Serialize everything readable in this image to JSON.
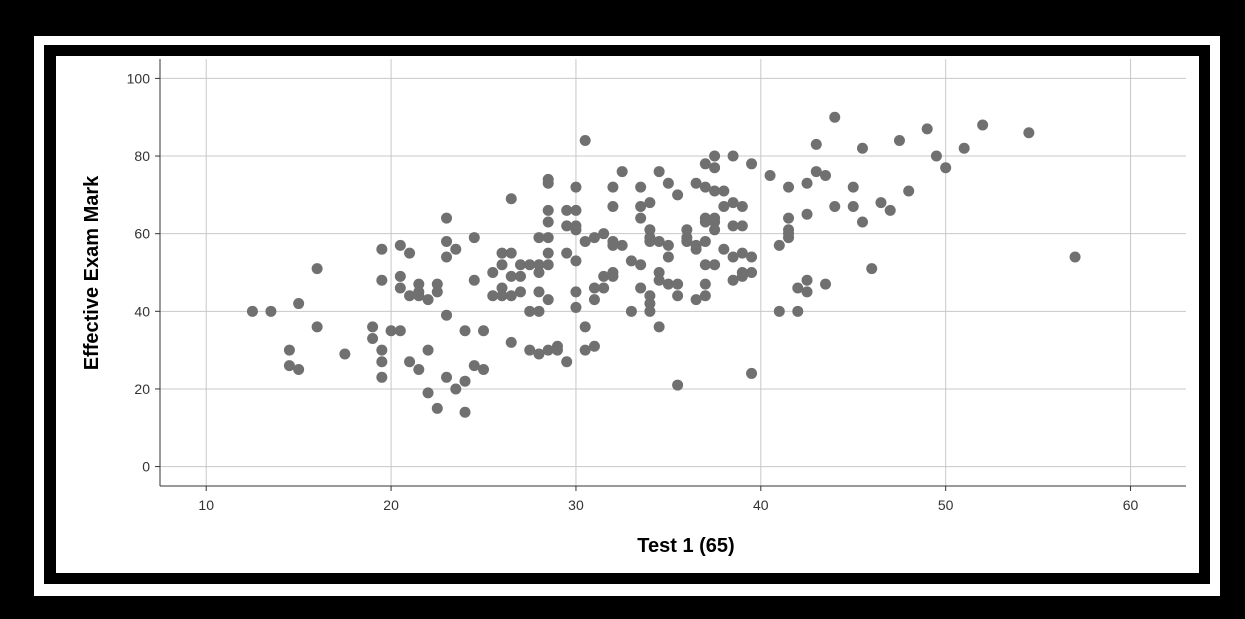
{
  "chart_data": {
    "type": "scatter",
    "title": "",
    "xlabel": "Test 1 (65)",
    "ylabel": "Effective Exam Mark",
    "xlim": [
      7.5,
      63
    ],
    "ylim": [
      -5,
      105
    ],
    "xticks": [
      10,
      20,
      30,
      40,
      50,
      60
    ],
    "yticks": [
      0,
      20,
      40,
      60,
      80,
      100
    ],
    "grid": true,
    "point_color": "#707070",
    "grid_color": "#c8c8c8",
    "points": [
      [
        12.5,
        40
      ],
      [
        13.5,
        40
      ],
      [
        14.5,
        30
      ],
      [
        14.5,
        26
      ],
      [
        15,
        25
      ],
      [
        15,
        42
      ],
      [
        16,
        51
      ],
      [
        16,
        36
      ],
      [
        17.5,
        29
      ],
      [
        19,
        36
      ],
      [
        19,
        33
      ],
      [
        19.5,
        56
      ],
      [
        19.5,
        48
      ],
      [
        19.5,
        30
      ],
      [
        19.5,
        27
      ],
      [
        19.5,
        23
      ],
      [
        20,
        35
      ],
      [
        20.5,
        35
      ],
      [
        20.5,
        57
      ],
      [
        20.5,
        49
      ],
      [
        20.5,
        46
      ],
      [
        21,
        55
      ],
      [
        21,
        44
      ],
      [
        21,
        27
      ],
      [
        21.5,
        47
      ],
      [
        21.5,
        45
      ],
      [
        21.5,
        44
      ],
      [
        21.5,
        25
      ],
      [
        22,
        43
      ],
      [
        22,
        30
      ],
      [
        22,
        19
      ],
      [
        22.5,
        47
      ],
      [
        22.5,
        45
      ],
      [
        22.5,
        15
      ],
      [
        23,
        64
      ],
      [
        23,
        58
      ],
      [
        23,
        54
      ],
      [
        23,
        39
      ],
      [
        23,
        23
      ],
      [
        23.5,
        56
      ],
      [
        23.5,
        20
      ],
      [
        24,
        35
      ],
      [
        24,
        22
      ],
      [
        24,
        14
      ],
      [
        24.5,
        59
      ],
      [
        24.5,
        48
      ],
      [
        24.5,
        26
      ],
      [
        25,
        35
      ],
      [
        25,
        25
      ],
      [
        25.5,
        50
      ],
      [
        25.5,
        44
      ],
      [
        26,
        55
      ],
      [
        26,
        52
      ],
      [
        26,
        46
      ],
      [
        26,
        44
      ],
      [
        26.5,
        69
      ],
      [
        26.5,
        55
      ],
      [
        26.5,
        49
      ],
      [
        26.5,
        44
      ],
      [
        26.5,
        32
      ],
      [
        27,
        52
      ],
      [
        27,
        49
      ],
      [
        27,
        45
      ],
      [
        27.5,
        52
      ],
      [
        27.5,
        40
      ],
      [
        27.5,
        30
      ],
      [
        28,
        59
      ],
      [
        28,
        52
      ],
      [
        28,
        50
      ],
      [
        28,
        45
      ],
      [
        28,
        40
      ],
      [
        28,
        29
      ],
      [
        28.5,
        74
      ],
      [
        28.5,
        73
      ],
      [
        28.5,
        66
      ],
      [
        28.5,
        63
      ],
      [
        28.5,
        59
      ],
      [
        28.5,
        55
      ],
      [
        28.5,
        52
      ],
      [
        28.5,
        43
      ],
      [
        28.5,
        30
      ],
      [
        29,
        31
      ],
      [
        29,
        30
      ],
      [
        29.5,
        66
      ],
      [
        29.5,
        62
      ],
      [
        29.5,
        55
      ],
      [
        29.5,
        27
      ],
      [
        30,
        72
      ],
      [
        30,
        66
      ],
      [
        30,
        62
      ],
      [
        30,
        61
      ],
      [
        30,
        53
      ],
      [
        30,
        45
      ],
      [
        30,
        41
      ],
      [
        30.5,
        84
      ],
      [
        30.5,
        58
      ],
      [
        30.5,
        36
      ],
      [
        30.5,
        30
      ],
      [
        31,
        59
      ],
      [
        31,
        46
      ],
      [
        31,
        43
      ],
      [
        31,
        31
      ],
      [
        31.5,
        60
      ],
      [
        31.5,
        49
      ],
      [
        31.5,
        46
      ],
      [
        32,
        72
      ],
      [
        32,
        67
      ],
      [
        32,
        58
      ],
      [
        32,
        57
      ],
      [
        32,
        50
      ],
      [
        32,
        49
      ],
      [
        32.5,
        76
      ],
      [
        32.5,
        57
      ],
      [
        33,
        53
      ],
      [
        33,
        40
      ],
      [
        33.5,
        72
      ],
      [
        33.5,
        67
      ],
      [
        33.5,
        64
      ],
      [
        33.5,
        52
      ],
      [
        33.5,
        46
      ],
      [
        34,
        68
      ],
      [
        34,
        61
      ],
      [
        34,
        59
      ],
      [
        34,
        58
      ],
      [
        34,
        44
      ],
      [
        34,
        42
      ],
      [
        34,
        40
      ],
      [
        34.5,
        76
      ],
      [
        34.5,
        58
      ],
      [
        34.5,
        50
      ],
      [
        34.5,
        48
      ],
      [
        34.5,
        36
      ],
      [
        35,
        73
      ],
      [
        35,
        57
      ],
      [
        35,
        54
      ],
      [
        35,
        47
      ],
      [
        35.5,
        70
      ],
      [
        35.5,
        47
      ],
      [
        35.5,
        44
      ],
      [
        35.5,
        21
      ],
      [
        36,
        61
      ],
      [
        36,
        59
      ],
      [
        36,
        58
      ],
      [
        36.5,
        73
      ],
      [
        36.5,
        57
      ],
      [
        36.5,
        56
      ],
      [
        36.5,
        43
      ],
      [
        37,
        78
      ],
      [
        37,
        72
      ],
      [
        37,
        64
      ],
      [
        37,
        63
      ],
      [
        37,
        58
      ],
      [
        37,
        52
      ],
      [
        37,
        47
      ],
      [
        37,
        44
      ],
      [
        37.5,
        80
      ],
      [
        37.5,
        77
      ],
      [
        37.5,
        71
      ],
      [
        37.5,
        64
      ],
      [
        37.5,
        63
      ],
      [
        37.5,
        61
      ],
      [
        37.5,
        52
      ],
      [
        38,
        71
      ],
      [
        38,
        67
      ],
      [
        38,
        56
      ],
      [
        38.5,
        80
      ],
      [
        38.5,
        68
      ],
      [
        38.5,
        62
      ],
      [
        38.5,
        54
      ],
      [
        38.5,
        48
      ],
      [
        39,
        67
      ],
      [
        39,
        62
      ],
      [
        39,
        55
      ],
      [
        39,
        50
      ],
      [
        39,
        49
      ],
      [
        39.5,
        78
      ],
      [
        39.5,
        54
      ],
      [
        39.5,
        50
      ],
      [
        39.5,
        24
      ],
      [
        40.5,
        75
      ],
      [
        41,
        57
      ],
      [
        41,
        40
      ],
      [
        41.5,
        72
      ],
      [
        41.5,
        64
      ],
      [
        41.5,
        61
      ],
      [
        41.5,
        60
      ],
      [
        41.5,
        59
      ],
      [
        42,
        46
      ],
      [
        42,
        40
      ],
      [
        42.5,
        73
      ],
      [
        42.5,
        65
      ],
      [
        42.5,
        48
      ],
      [
        42.5,
        45
      ],
      [
        43,
        83
      ],
      [
        43,
        76
      ],
      [
        43.5,
        75
      ],
      [
        43.5,
        47
      ],
      [
        44,
        90
      ],
      [
        44,
        67
      ],
      [
        45,
        72
      ],
      [
        45,
        67
      ],
      [
        45.5,
        82
      ],
      [
        45.5,
        63
      ],
      [
        46,
        51
      ],
      [
        46.5,
        68
      ],
      [
        47,
        66
      ],
      [
        47.5,
        84
      ],
      [
        48,
        71
      ],
      [
        49,
        87
      ],
      [
        49.5,
        80
      ],
      [
        50,
        77
      ],
      [
        51,
        82
      ],
      [
        52,
        88
      ],
      [
        54.5,
        86
      ],
      [
        57,
        54
      ]
    ]
  }
}
